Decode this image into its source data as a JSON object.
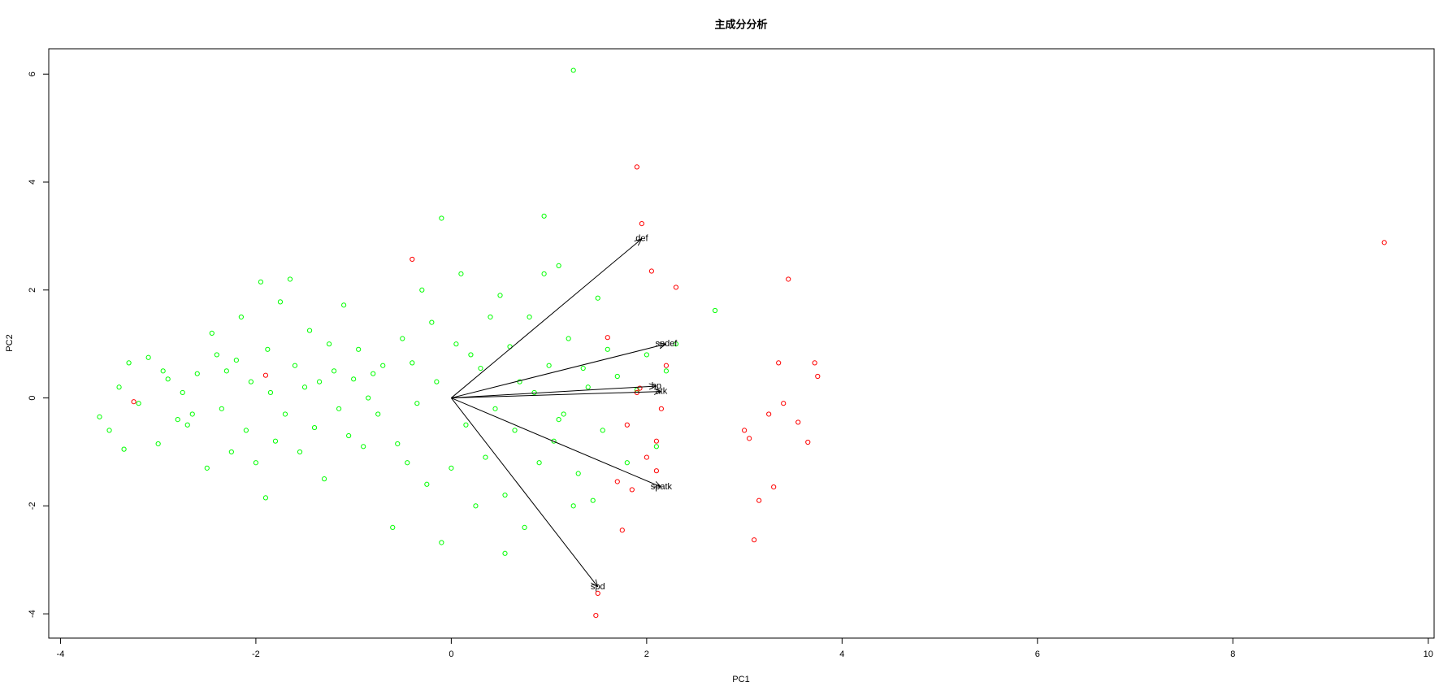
{
  "chart_data": {
    "type": "scatter",
    "title": "主成分分析",
    "x_label": "PC1",
    "y_label": "PC2",
    "xlim": [
      -4.12,
      10.06
    ],
    "ylim": [
      -4.45,
      6.47
    ],
    "xticks": [
      -4,
      -2,
      0,
      2,
      4,
      6,
      8,
      10
    ],
    "yticks": [
      -4,
      -2,
      0,
      2,
      4,
      6
    ],
    "grid": false,
    "series": [
      {
        "color": "#00ff00",
        "x": [
          -3.6,
          -3.5,
          -3.4,
          -3.35,
          -3.3,
          -3.2,
          -3.1,
          -3.0,
          -2.95,
          -2.9,
          -2.8,
          -2.75,
          -2.7,
          -2.65,
          -2.6,
          -2.5,
          -2.45,
          -2.4,
          -2.35,
          -2.3,
          -2.25,
          -2.2,
          -2.15,
          -2.1,
          -2.05,
          -2.0,
          -1.95,
          -1.9,
          -1.88,
          -1.85,
          -1.8,
          -1.75,
          -1.7,
          -1.65,
          -1.6,
          -1.55,
          -1.5,
          -1.45,
          -1.4,
          -1.35,
          -1.3,
          -1.25,
          -1.2,
          -1.15,
          -1.1,
          -1.05,
          -1.0,
          -0.95,
          -0.9,
          -0.85,
          -0.8,
          -0.75,
          -0.7,
          -0.6,
          -0.55,
          -0.5,
          -0.45,
          -0.4,
          -0.35,
          -0.3,
          -0.25,
          -0.2,
          -0.15,
          -0.1,
          0.0,
          0.05,
          0.1,
          0.15,
          0.2,
          0.25,
          0.3,
          0.35,
          0.4,
          0.45,
          0.5,
          0.55,
          0.6,
          0.65,
          0.7,
          0.75,
          0.8,
          0.85,
          0.9,
          0.95,
          1.0,
          1.05,
          1.1,
          1.15,
          1.2,
          1.25,
          1.3,
          1.35,
          1.4,
          1.45,
          1.5,
          1.55,
          1.6,
          1.7,
          1.8,
          1.9,
          2.0,
          2.1,
          2.2,
          2.3,
          2.7,
          1.25,
          -0.1,
          0.95,
          0.55,
          1.1
        ],
        "values": [
          -0.35,
          -0.6,
          0.2,
          -0.95,
          0.65,
          -0.1,
          0.75,
          -0.85,
          0.5,
          0.35,
          -0.4,
          0.1,
          -0.5,
          -0.3,
          0.45,
          -1.3,
          1.2,
          0.8,
          -0.2,
          0.5,
          -1.0,
          0.7,
          1.5,
          -0.6,
          0.3,
          -1.2,
          2.15,
          -1.85,
          0.9,
          0.1,
          -0.8,
          1.78,
          -0.3,
          2.2,
          0.6,
          -1.0,
          0.2,
          1.25,
          -0.55,
          0.3,
          -1.5,
          1.0,
          0.5,
          -0.2,
          1.72,
          -0.7,
          0.35,
          0.9,
          -0.9,
          0.0,
          0.45,
          -0.3,
          0.6,
          -2.4,
          -0.85,
          1.1,
          -1.2,
          0.65,
          -0.1,
          2.0,
          -1.6,
          1.4,
          0.3,
          3.33,
          -1.3,
          1.0,
          2.3,
          -0.5,
          0.8,
          -2.0,
          0.55,
          -1.1,
          1.5,
          -0.2,
          1.9,
          -1.8,
          0.95,
          -0.6,
          0.3,
          -2.4,
          1.5,
          0.1,
          -1.2,
          3.37,
          0.6,
          -0.8,
          2.45,
          -0.3,
          1.1,
          6.07,
          -1.4,
          0.55,
          0.2,
          -1.9,
          1.85,
          -0.6,
          0.9,
          0.4,
          -1.2,
          0.15,
          0.8,
          -0.9,
          0.5,
          1.0,
          1.62,
          -2.0,
          -2.68,
          2.3,
          -2.88,
          -0.4
        ]
      },
      {
        "color": "#ff0000",
        "x": [
          9.55,
          1.9,
          -0.4,
          3.45,
          1.48,
          1.5,
          -3.25,
          -1.9,
          1.6,
          1.7,
          1.75,
          1.8,
          1.85,
          1.9,
          1.95,
          2.0,
          2.05,
          2.1,
          2.15,
          2.2,
          2.3,
          3.0,
          3.05,
          3.1,
          3.15,
          3.25,
          3.3,
          3.35,
          3.4,
          3.55,
          3.65,
          3.75,
          3.72,
          1.93,
          2.1
        ],
        "values": [
          2.88,
          4.28,
          2.57,
          2.2,
          -4.03,
          -3.62,
          -0.07,
          0.42,
          1.12,
          -1.55,
          -2.45,
          -0.5,
          -1.7,
          0.1,
          3.23,
          -1.1,
          2.35,
          -0.8,
          -0.2,
          0.6,
          2.05,
          -0.6,
          -0.75,
          -2.63,
          -1.9,
          -0.3,
          -1.65,
          0.65,
          -0.1,
          -0.45,
          -0.82,
          0.4,
          0.65,
          0.18,
          -1.35
        ]
      }
    ],
    "arrows": {
      "color": "#000000",
      "names": [
        "def",
        "spdef",
        "hp",
        "atk",
        "spatk",
        "spd"
      ],
      "x": [
        1.95,
        2.2,
        2.1,
        2.15,
        2.15,
        1.5
      ],
      "values": [
        2.95,
        1.0,
        0.22,
        0.12,
        -1.65,
        -3.5
      ]
    }
  }
}
